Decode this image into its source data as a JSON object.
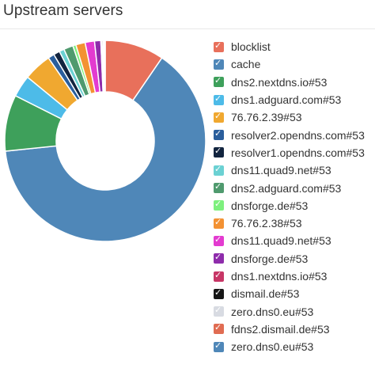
{
  "card": {
    "title": "Upstream servers"
  },
  "chart_data": {
    "type": "pie",
    "title": "",
    "legend_position": "right",
    "series": [
      {
        "name": "blocklist",
        "value": 9.5,
        "color": "#e8705b"
      },
      {
        "name": "cache",
        "value": 63.5,
        "color": "#4f87b8"
      },
      {
        "name": "dns2.nextdns.io#53",
        "value": 9.0,
        "color": "#3ea05b"
      },
      {
        "name": "dns1.adguard.com#53",
        "value": 3.5,
        "color": "#4dbbe8"
      },
      {
        "name": "76.76.2.39#53",
        "value": 4.5,
        "color": "#f0a830"
      },
      {
        "name": "resolver2.opendns.com#53",
        "value": 1.0,
        "color": "#2a5e9c"
      },
      {
        "name": "resolver1.opendns.com#53",
        "value": 1.0,
        "color": "#12243f"
      },
      {
        "name": "dns11.quad9.net#53",
        "value": 0.8,
        "color": "#6bd1d3"
      },
      {
        "name": "dns2.adguard.com#53",
        "value": 1.5,
        "color": "#4f9a6e"
      },
      {
        "name": "dnsforge.de#53",
        "value": 0.5,
        "color": "#7ef07e"
      },
      {
        "name": "76.76.2.38#53",
        "value": 1.5,
        "color": "#f39233"
      },
      {
        "name": "dns11.quad9.net#53",
        "value": 1.5,
        "color": "#e33bd0"
      },
      {
        "name": "dnsforge.de#53",
        "value": 1.0,
        "color": "#8e2cab"
      },
      {
        "name": "dns1.nextdns.io#53",
        "value": 0.2,
        "color": "#c73666"
      },
      {
        "name": "dismail.de#53",
        "value": 0.2,
        "color": "#161616"
      },
      {
        "name": "zero.dns0.eu#53",
        "value": 0.1,
        "color": "#d8dbe2"
      },
      {
        "name": "fdns2.dismail.de#53",
        "value": 0.1,
        "color": "#e06c52"
      },
      {
        "name": "zero.dns0.eu#53",
        "value": 0.1,
        "color": "#4f87b8"
      }
    ]
  }
}
